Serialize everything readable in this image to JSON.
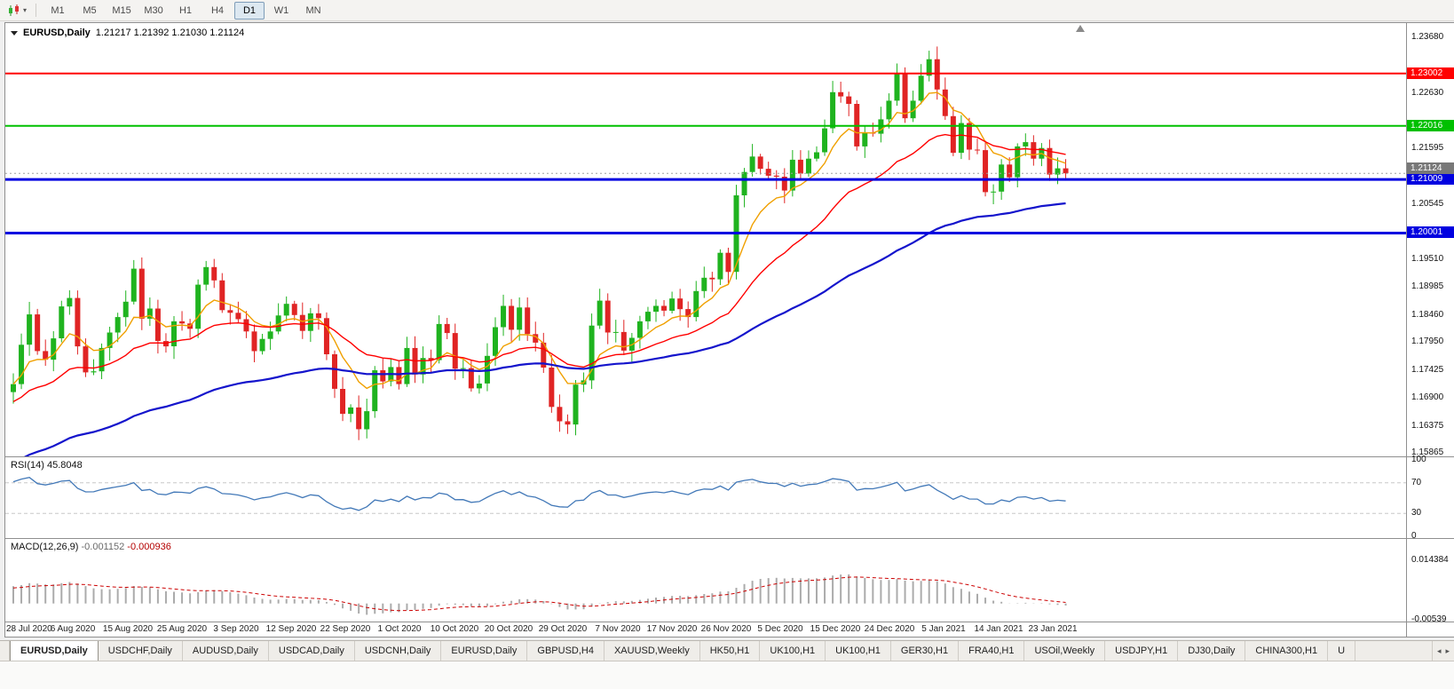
{
  "colors": {
    "up": "#1fb31f",
    "down": "#e02424",
    "axis_text": "#111111",
    "current_line": "#a0a0a0",
    "current_box": "#787878"
  },
  "icons": {
    "toolbar-caret-icon": "▾",
    "tabs-scroll-left-icon": "◂",
    "tabs-scroll-right-icon": "▸"
  },
  "toolbar": {
    "timeframes": [
      {
        "label": "M1",
        "active": false
      },
      {
        "label": "M5",
        "active": false
      },
      {
        "label": "M15",
        "active": false
      },
      {
        "label": "M30",
        "active": false
      },
      {
        "label": "H1",
        "active": false
      },
      {
        "label": "H4",
        "active": false
      },
      {
        "label": "D1",
        "active": true
      },
      {
        "label": "W1",
        "active": false
      },
      {
        "label": "MN",
        "active": false
      }
    ]
  },
  "chart": {
    "symbol_period": "EURUSD,Daily",
    "ohlc": "1.21217 1.21392 1.21030 1.21124"
  },
  "panes": {
    "rsi_label": "RSI(14)",
    "rsi_value": "45.8048",
    "macd_label": "MACD(12,26,9)",
    "macd_main": "-0.001152",
    "macd_signal": "-0.000936"
  },
  "tabs": {
    "items": [
      {
        "label": "EURUSD,Daily",
        "active": true
      },
      {
        "label": "USDCHF,Daily",
        "active": false
      },
      {
        "label": "AUDUSD,Daily",
        "active": false
      },
      {
        "label": "USDCAD,Daily",
        "active": false
      },
      {
        "label": "USDCNH,Daily",
        "active": false
      },
      {
        "label": "EURUSD,Daily",
        "active": false
      },
      {
        "label": "GBPUSD,H4",
        "active": false
      },
      {
        "label": "XAUUSD,Weekly",
        "active": false
      },
      {
        "label": "HK50,H1",
        "active": false
      },
      {
        "label": "UK100,H1",
        "active": false
      },
      {
        "label": "UK100,H1",
        "active": false
      },
      {
        "label": "GER30,H1",
        "active": false
      },
      {
        "label": "FRA40,H1",
        "active": false
      },
      {
        "label": "USOil,Weekly",
        "active": false
      },
      {
        "label": "USDJPY,H1",
        "active": false
      },
      {
        "label": "DJ30,Daily",
        "active": false
      },
      {
        "label": "CHINA300,H1",
        "active": false
      },
      {
        "label": "U",
        "active": false,
        "truncated": true
      }
    ]
  },
  "chart_data": {
    "type": "candlestick",
    "symbol": "EURUSD",
    "timeframe": "Daily",
    "title_ohlc": {
      "open": "1.21217",
      "high": "1.21392",
      "low": "1.21030",
      "close": "1.21124"
    },
    "price_axis_range": {
      "top": 1.2395,
      "bottom": 1.158
    },
    "price_axis_ticks": [
      {
        "label": "1.23680",
        "value": 1.2368
      },
      {
        "label": "1.22630",
        "value": 1.2263
      },
      {
        "label": "1.21595",
        "value": 1.21595
      },
      {
        "label": "1.20545",
        "value": 1.20545
      },
      {
        "label": "1.19510",
        "value": 1.1951
      },
      {
        "label": "1.18985",
        "value": 1.18985
      },
      {
        "label": "1.18460",
        "value": 1.1846
      },
      {
        "label": "1.17950",
        "value": 1.1795
      },
      {
        "label": "1.17425",
        "value": 1.17425
      },
      {
        "label": "1.16900",
        "value": 1.169
      },
      {
        "label": "1.16375",
        "value": 1.16375
      },
      {
        "label": "1.15865",
        "value": 1.15865
      }
    ],
    "horizontal_lines": [
      {
        "label": "1.23002",
        "value": 1.23002,
        "color": "#ff0000",
        "width": 2
      },
      {
        "label": "1.22016",
        "value": 1.22016,
        "color": "#00c000",
        "width": 2
      },
      {
        "label": "1.21009",
        "value": 1.21009,
        "color": "#0000e0",
        "width": 3
      },
      {
        "label": "1.20001",
        "value": 1.20001,
        "color": "#0000e0",
        "width": 3
      }
    ],
    "current_price": {
      "label": "1.21124",
      "value": 1.21124
    },
    "closes": [
      1.1716,
      1.179,
      1.1847,
      1.1778,
      1.1762,
      1.1802,
      1.1862,
      1.1878,
      1.1787,
      1.1738,
      1.174,
      1.1784,
      1.1813,
      1.1842,
      1.1871,
      1.1933,
      1.1839,
      1.1858,
      1.1797,
      1.1787,
      1.1834,
      1.183,
      1.182,
      1.1903,
      1.1936,
      1.1911,
      1.1855,
      1.185,
      1.1838,
      1.1815,
      1.1778,
      1.1801,
      1.1815,
      1.1845,
      1.1867,
      1.1846,
      1.1816,
      1.1849,
      1.184,
      1.1772,
      1.1707,
      1.166,
      1.1672,
      1.1631,
      1.1665,
      1.1742,
      1.1721,
      1.1748,
      1.1716,
      1.1784,
      1.1734,
      1.1765,
      1.1761,
      1.1829,
      1.1812,
      1.1745,
      1.1746,
      1.1708,
      1.1717,
      1.1769,
      1.1823,
      1.1863,
      1.1818,
      1.186,
      1.181,
      1.1794,
      1.1747,
      1.1673,
      1.1646,
      1.164,
      1.1715,
      1.1723,
      1.1826,
      1.1873,
      1.1813,
      1.1814,
      1.1779,
      1.1803,
      1.1834,
      1.1852,
      1.1863,
      1.1854,
      1.1877,
      1.1857,
      1.1842,
      1.1891,
      1.1916,
      1.1913,
      1.1963,
      1.1927,
      1.2071,
      1.2115,
      1.2144,
      1.2121,
      1.2108,
      1.2106,
      1.208,
      1.2138,
      1.2112,
      1.214,
      1.2152,
      1.2197,
      1.2265,
      1.2257,
      1.2243,
      1.2163,
      1.2189,
      1.2187,
      1.2214,
      1.2249,
      1.2299,
      1.2216,
      1.2249,
      1.2296,
      1.2327,
      1.227,
      1.222,
      1.2151,
      1.2207,
      1.2157,
      1.2156,
      1.2077,
      1.2078,
      1.2129,
      1.2105,
      1.2163,
      1.2171,
      1.214,
      1.216,
      1.211,
      1.21217,
      1.21124
    ],
    "last_bar": {
      "open": 1.21217,
      "high": 1.21392,
      "low": 1.2103,
      "close": 1.21124
    },
    "overlays": {
      "ema_fast": {
        "period": 8,
        "color": "#f0a000",
        "seed": null
      },
      "ema_mid": {
        "period": 24,
        "color": "#ff0000",
        "seed": 1.168
      },
      "ema_slow": {
        "period": 70,
        "color": "#1414cc",
        "seed": 1.1565
      }
    },
    "rsi": {
      "period": 14,
      "last_value": "45.8048",
      "color": "#4379b8",
      "dashed_levels": [
        70,
        30
      ],
      "axis": [
        {
          "label": "100",
          "value": 100
        },
        {
          "label": "70",
          "value": 70
        },
        {
          "label": "30",
          "value": 30
        },
        {
          "label": "0",
          "value": 0
        }
      ]
    },
    "macd": {
      "fast": 12,
      "slow": 26,
      "signal": 9,
      "last_main": "-0.001152",
      "last_signal": "-0.000936",
      "hist_color": "#ababab",
      "signal_color": "#cc0000",
      "axis": [
        {
          "label": "0.014384",
          "value": 0.014384
        },
        {
          "label": "-0.00539",
          "value": -0.00539
        }
      ]
    },
    "x_axis_dates": [
      "28 Jul 2020",
      "6 Aug 2020",
      "15 Aug 2020",
      "25 Aug 2020",
      "3 Sep 2020",
      "12 Sep 2020",
      "22 Sep 2020",
      "1 Oct 2020",
      "10 Oct 2020",
      "20 Oct 2020",
      "29 Oct 2020",
      "7 Nov 2020",
      "17 Nov 2020",
      "26 Nov 2020",
      "5 Dec 2020",
      "15 Dec 2020",
      "24 Dec 2020",
      "5 Jan 2021",
      "14 Jan 2021",
      "23 Jan 2021"
    ]
  }
}
